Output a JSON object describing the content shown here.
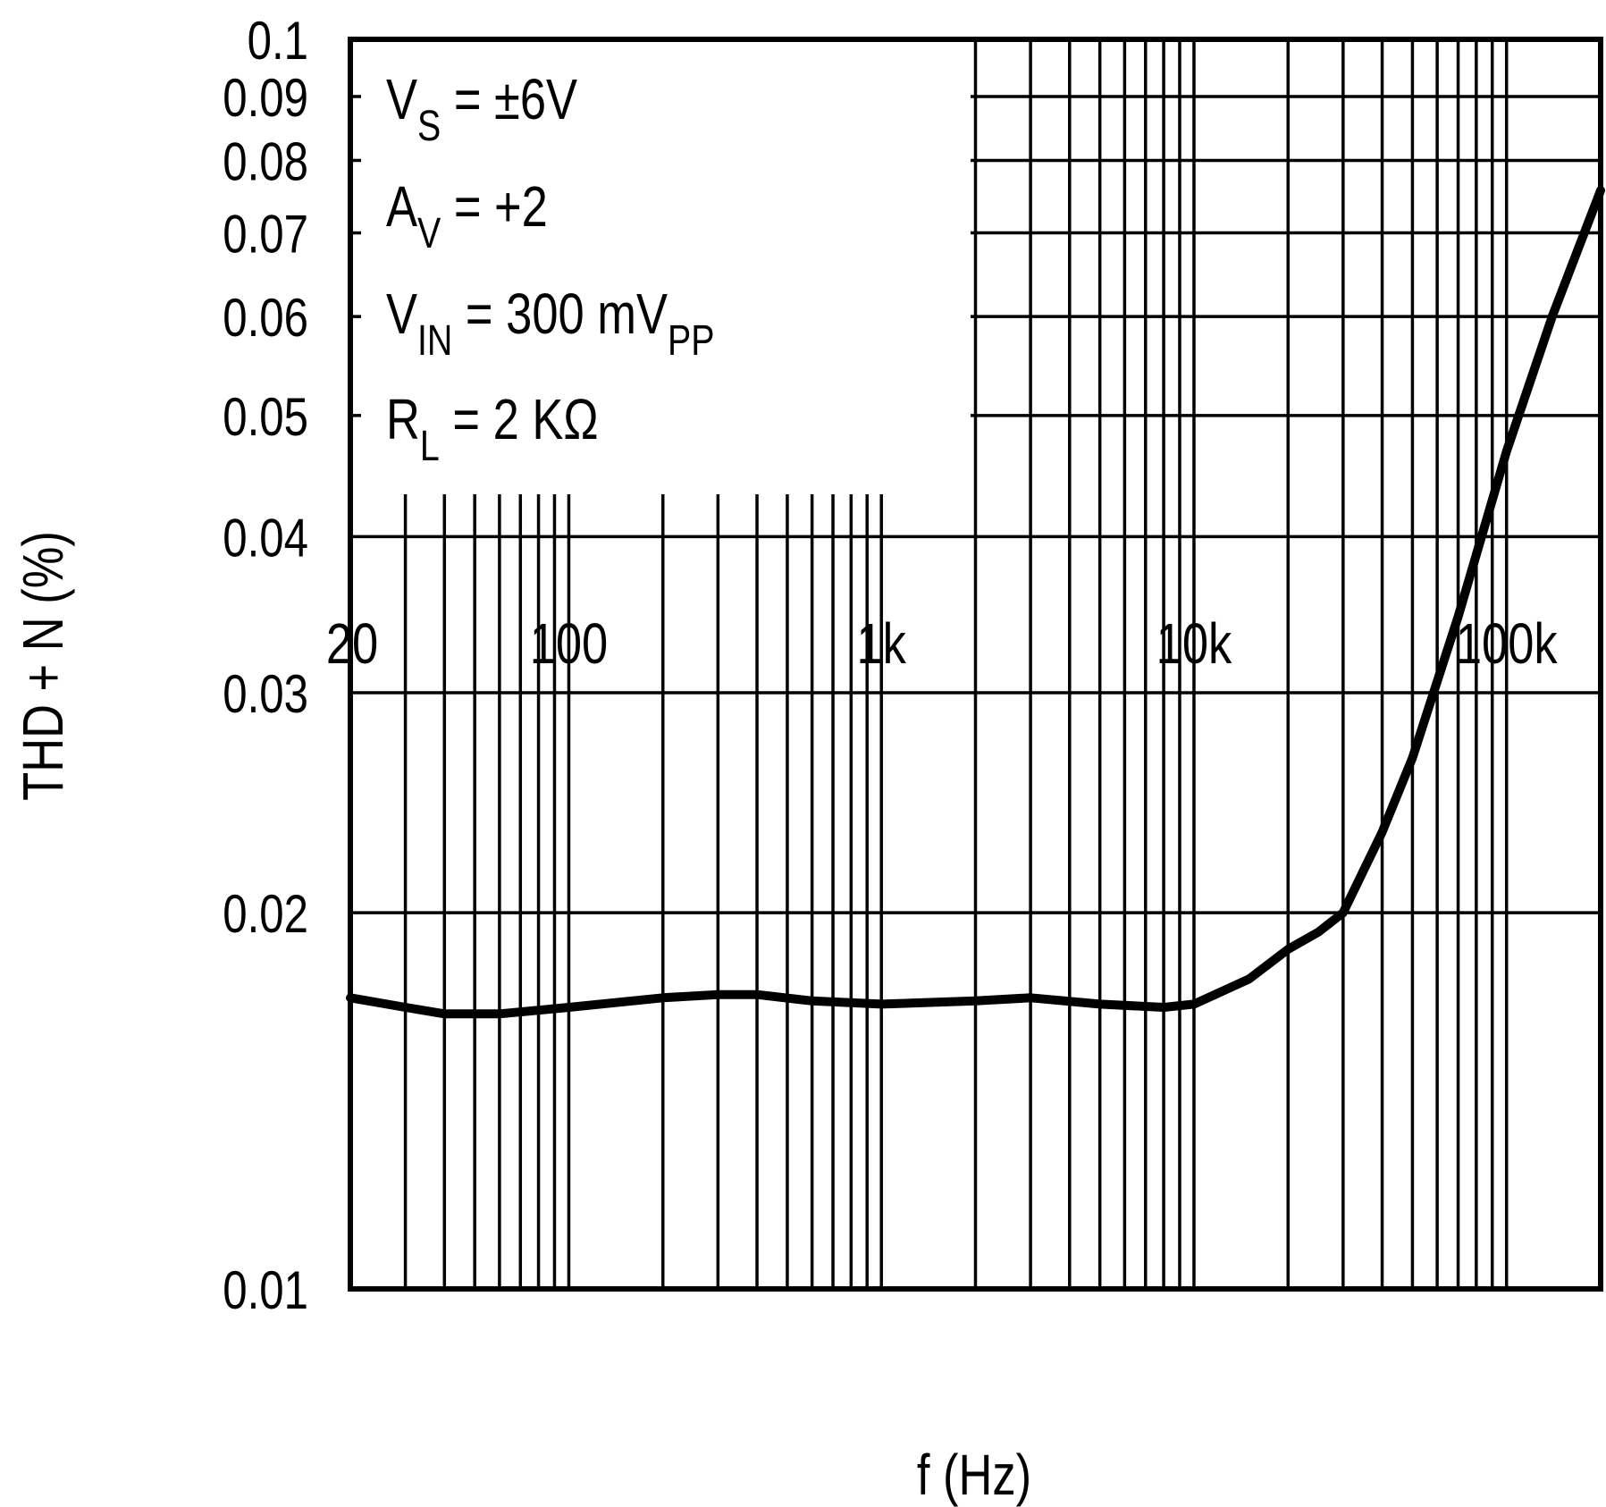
{
  "chart_data": {
    "type": "line",
    "xlabel": "f (Hz)",
    "ylabel": "THD + N (%)",
    "x_scale": "log",
    "y_scale": "log",
    "xlim": [
      20,
      200000
    ],
    "ylim": [
      0.01,
      0.1
    ],
    "grid": true,
    "x_ticks": [
      {
        "value": 20,
        "label": "20"
      },
      {
        "value": 100,
        "label": "100"
      },
      {
        "value": 1000,
        "label": "1k"
      },
      {
        "value": 10000,
        "label": "10k"
      },
      {
        "value": 100000,
        "label": "100k"
      }
    ],
    "y_ticks": [
      {
        "value": 0.01,
        "label": "0.01"
      },
      {
        "value": 0.02,
        "label": "0.02"
      },
      {
        "value": 0.03,
        "label": "0.03"
      },
      {
        "value": 0.04,
        "label": "0.04"
      },
      {
        "value": 0.05,
        "label": "0.05"
      },
      {
        "value": 0.06,
        "label": "0.06"
      },
      {
        "value": 0.07,
        "label": "0.07"
      },
      {
        "value": 0.08,
        "label": "0.08"
      },
      {
        "value": 0.09,
        "label": "0.09"
      },
      {
        "value": 0.1,
        "label": "0.1"
      }
    ],
    "annotations": [
      {
        "main": "V",
        "sub": "S",
        "rest": " =  ±6V",
        "rest_sub": ""
      },
      {
        "main": "A",
        "sub": "V",
        "rest": " =  +2",
        "rest_sub": ""
      },
      {
        "main": "V",
        "sub": "IN",
        "rest": " =  300 mV",
        "rest_sub": "PP"
      },
      {
        "main": "R",
        "sub": "L",
        "rest": " =  2 KΩ",
        "rest_sub": ""
      }
    ],
    "series": [
      {
        "x": [
          20,
          30,
          40,
          60,
          100,
          200,
          300,
          400,
          600,
          1000,
          2000,
          3000,
          5000,
          8000,
          10000,
          15000,
          20000,
          25000,
          30000,
          40000,
          50000,
          70000,
          100000,
          140000,
          200000
        ],
        "y": [
          0.0171,
          0.0168,
          0.0166,
          0.0166,
          0.0168,
          0.0171,
          0.0172,
          0.0172,
          0.017,
          0.0169,
          0.017,
          0.0171,
          0.0169,
          0.0168,
          0.0169,
          0.0177,
          0.0187,
          0.0193,
          0.02,
          0.0232,
          0.0266,
          0.0345,
          0.0468,
          0.06,
          0.0757
        ]
      }
    ]
  }
}
